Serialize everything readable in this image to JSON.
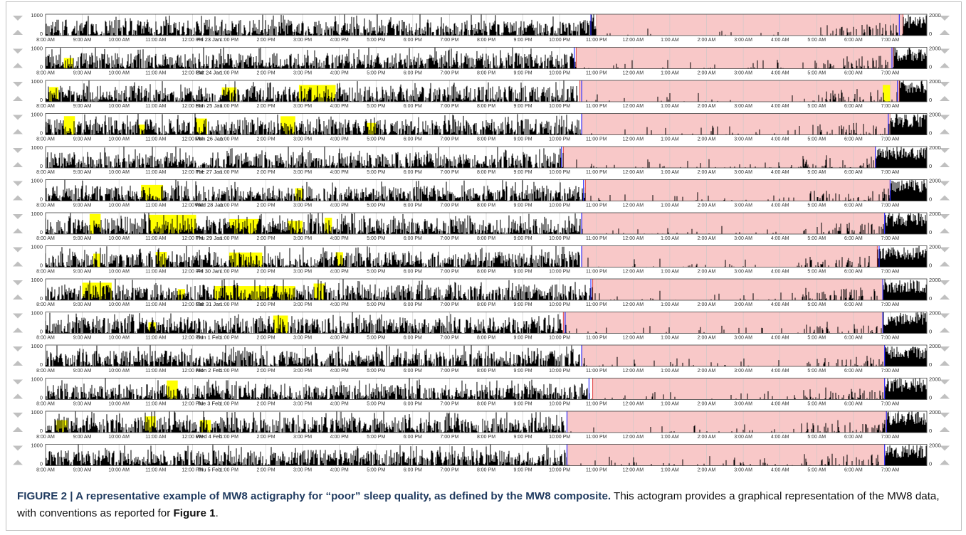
{
  "caption": {
    "label": "FIGURE 2 | A representative example of MW8 actigraphy for “poor” sleep quality, as defined by the MW8 composite.",
    "text_before": " This actogram provides a graphical representation of the MW8 data, with conventions as reported for ",
    "figure_ref": "Figure 1",
    "text_after": "."
  },
  "chart_data": {
    "type": "actogram",
    "left_axis": {
      "ticks": [
        "1000",
        "0"
      ]
    },
    "right_axis": {
      "ticks": [
        "2000",
        "0"
      ]
    },
    "time_ticks": [
      "8:00 AM",
      "9:00 AM",
      "10:00 AM",
      "11:00 AM",
      "12:00 PM",
      "1:00 PM",
      "2:00 PM",
      "3:00 PM",
      "4:00 PM",
      "5:00 PM",
      "6:00 PM",
      "7:00 PM",
      "8:00 PM",
      "9:00 PM",
      "10:00 PM",
      "11:00 PM",
      "12:00 AM",
      "1:00 AM",
      "2:00 AM",
      "3:00 AM",
      "4:00 AM",
      "5:00 AM",
      "6:00 AM",
      "7:00 AM"
    ],
    "time_range_hours": [
      8,
      32
    ],
    "colors": {
      "activity": "#000000",
      "light": "#ffff00",
      "rest_interval": "#f8c8c8",
      "rest_border": "#e04040",
      "marker_blue": "#3030ff",
      "axis": "#404040",
      "gridline": "#c8c8c8"
    },
    "days": [
      {
        "label": "Fri 23 Jan",
        "rest_start": 23.0,
        "rest_end": 31.35,
        "markers": [
          22.85,
          31.25
        ],
        "light": []
      },
      {
        "label": "Sat 24 Jan",
        "rest_start": 22.45,
        "rest_end": 31.1,
        "markers": [
          22.4,
          31.05
        ],
        "light": [
          [
            8.5,
            8.75
          ]
        ]
      },
      {
        "label": "Sun 25 Jan",
        "rest_start": 22.55,
        "rest_end": 31.25,
        "markers": [
          22.6,
          31.2
        ],
        "light": [
          [
            8.1,
            8.35
          ],
          [
            12.8,
            13.2
          ],
          [
            14.9,
            15.9
          ],
          [
            30.8,
            31.0
          ]
        ]
      },
      {
        "label": "Mon 26 Jan",
        "rest_start": 22.6,
        "rest_end": 31.0,
        "markers": [
          22.6,
          30.95
        ],
        "light": [
          [
            8.5,
            8.8
          ],
          [
            10.5,
            10.7
          ],
          [
            12.1,
            12.4
          ],
          [
            14.4,
            14.8
          ],
          [
            16.7,
            17.0
          ]
        ]
      },
      {
        "label": "Tue 27 Jan",
        "rest_start": 22.1,
        "rest_end": 30.6,
        "markers": [
          22.05,
          30.6
        ],
        "light": []
      },
      {
        "label": "Wed 28 Jan",
        "rest_start": 22.7,
        "rest_end": 31.0,
        "markers": [
          22.65,
          31.0
        ],
        "light": [
          [
            10.6,
            11.2
          ],
          [
            14.8,
            15.0
          ]
        ]
      },
      {
        "label": "Thu 29 Jan",
        "rest_start": 22.6,
        "rest_end": 30.85,
        "markers": [
          22.6,
          30.85
        ],
        "light": [
          [
            9.2,
            9.5
          ],
          [
            10.8,
            12.1
          ],
          [
            13.0,
            13.8
          ],
          [
            14.6,
            15.0
          ],
          [
            15.6,
            15.8
          ]
        ]
      },
      {
        "label": "Fri 30 Jan",
        "rest_start": 22.6,
        "rest_end": 30.65,
        "markers": [
          22.6,
          30.7
        ],
        "light": [
          [
            9.3,
            9.5
          ],
          [
            11.0,
            11.3
          ],
          [
            13.0,
            13.9
          ],
          [
            15.9,
            16.1
          ]
        ]
      },
      {
        "label": "Sat 31 Jan",
        "rest_start": 22.9,
        "rest_end": 30.8,
        "markers": [
          22.85,
          30.8
        ],
        "light": [
          [
            9.0,
            9.8
          ],
          [
            11.6,
            11.8
          ],
          [
            12.6,
            14.8
          ],
          [
            15.3,
            15.6
          ]
        ]
      },
      {
        "label": "Sun 1 Feb",
        "rest_start": 22.1,
        "rest_end": 30.8,
        "markers": [
          22.15,
          30.8
        ],
        "light": [
          [
            10.8,
            11.0
          ],
          [
            14.2,
            14.6
          ]
        ]
      },
      {
        "label": "Mon 2 Feb",
        "rest_start": 22.6,
        "rest_end": 30.85,
        "markers": [
          22.6,
          30.85
        ],
        "light": []
      },
      {
        "label": "Tue 3 Feb",
        "rest_start": 22.9,
        "rest_end": 30.85,
        "markers": [
          22.8,
          30.85
        ],
        "light": [
          [
            11.3,
            11.6
          ]
        ]
      },
      {
        "label": "Wed 4 Feb",
        "rest_start": 22.2,
        "rest_end": 30.9,
        "markers": [
          22.2,
          30.9
        ],
        "light": [
          [
            8.3,
            8.6
          ],
          [
            10.7,
            11.0
          ],
          [
            12.2,
            12.5
          ]
        ]
      },
      {
        "label": "Thu 5 Feb",
        "rest_start": 22.2,
        "rest_end": 30.85,
        "markers": [
          22.2,
          30.85
        ],
        "light": []
      }
    ]
  }
}
